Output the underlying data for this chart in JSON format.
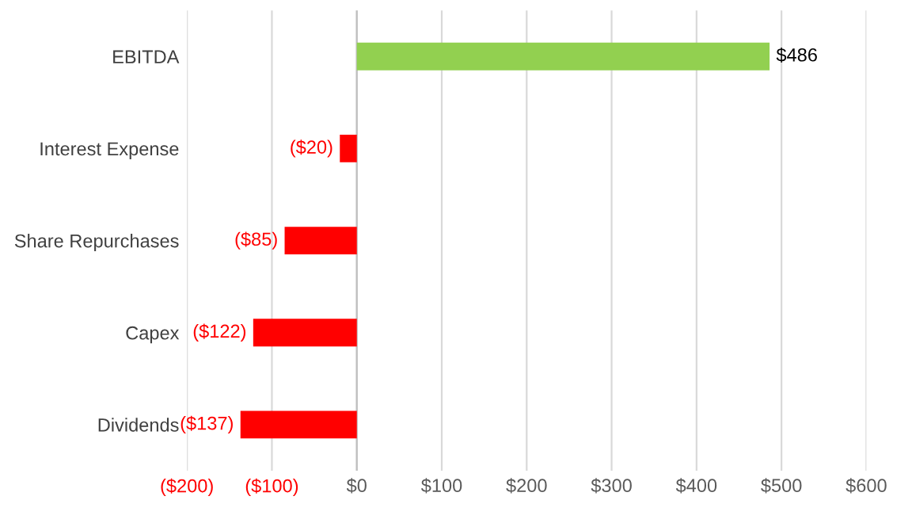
{
  "chart_data": {
    "type": "bar",
    "orientation": "horizontal",
    "categories": [
      "EBITDA",
      "Interest Expense",
      "Share Repurchases",
      "Capex",
      "Dividends"
    ],
    "values": [
      486,
      -20,
      -85,
      -122,
      -137
    ],
    "colors": [
      "#92d050",
      "#ff0000",
      "#ff0000",
      "#ff0000",
      "#ff0000"
    ],
    "value_labels": [
      "$486",
      "($20)",
      "($85)",
      "($122)",
      "($137)"
    ],
    "xlim": [
      -200,
      600
    ],
    "xticks": [
      {
        "value": -200,
        "label": "($200)"
      },
      {
        "value": -100,
        "label": "($100)"
      },
      {
        "value": 0,
        "label": "$0"
      },
      {
        "value": 100,
        "label": "$100"
      },
      {
        "value": 200,
        "label": "$200"
      },
      {
        "value": 300,
        "label": "$300"
      },
      {
        "value": 400,
        "label": "$400"
      },
      {
        "value": 500,
        "label": "$500"
      },
      {
        "value": 600,
        "label": "$600"
      }
    ],
    "grid": "x"
  }
}
